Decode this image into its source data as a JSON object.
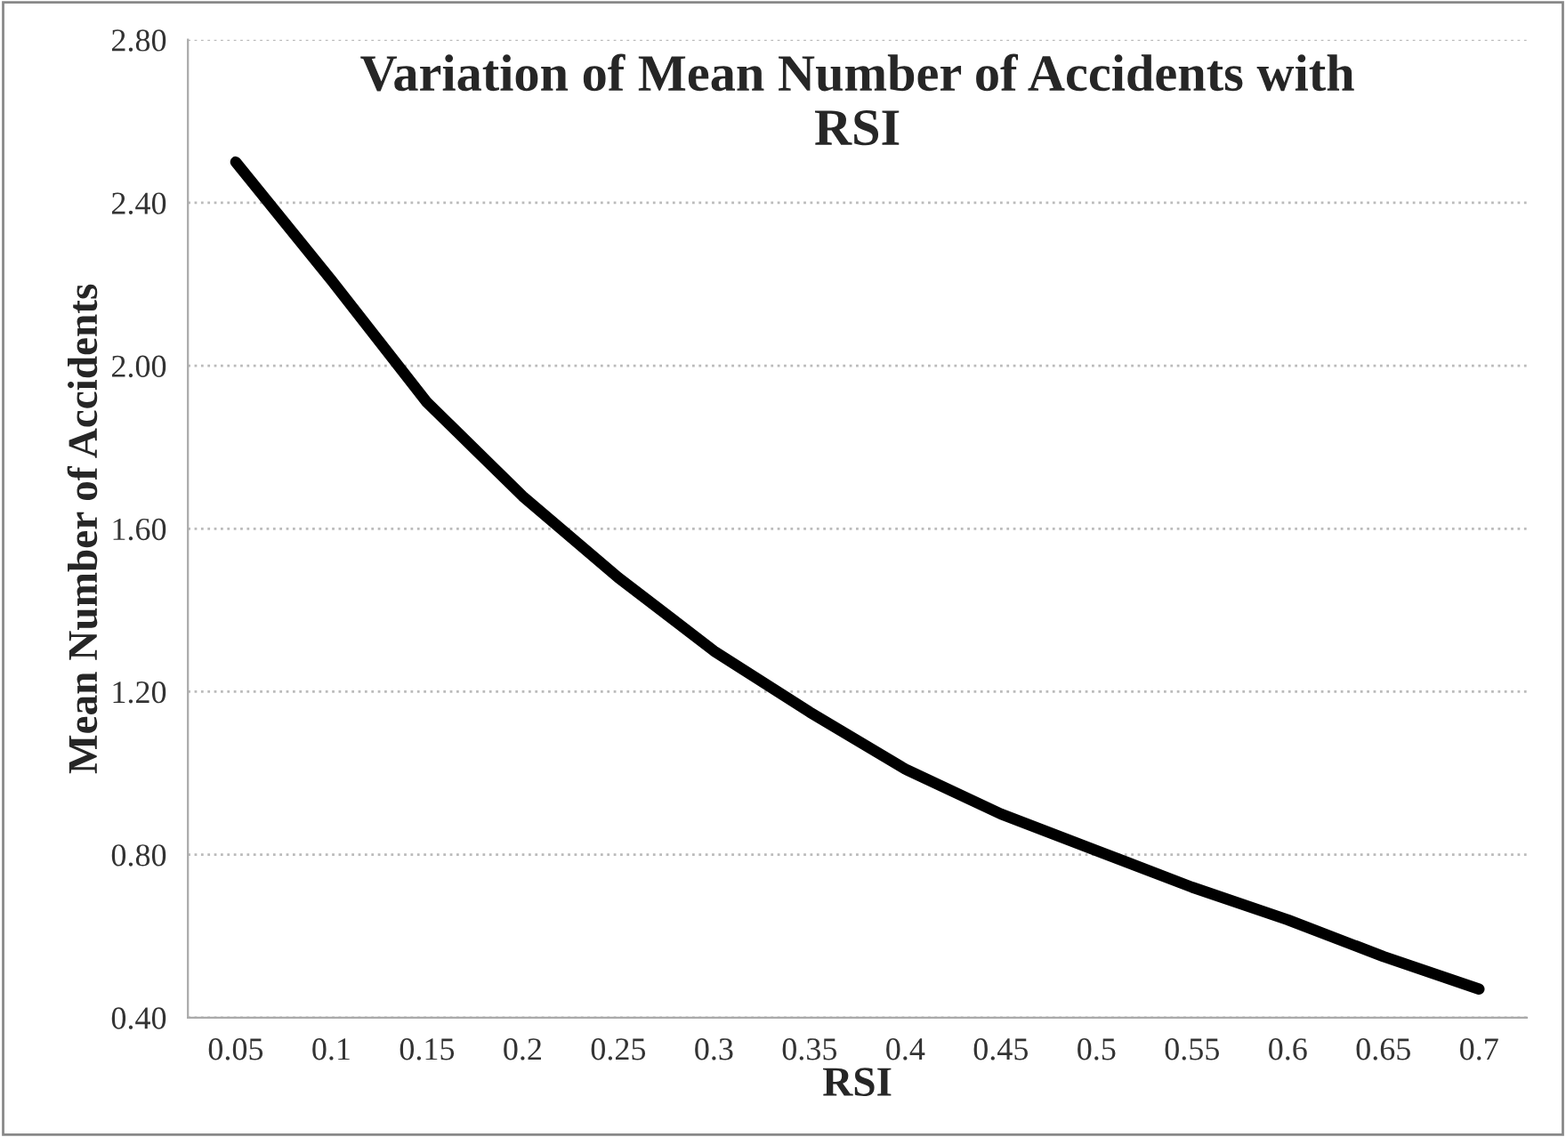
{
  "chart_data": {
    "type": "line",
    "title": "Variation of Mean Number of Accidents with\nRSI",
    "xlabel": "RSI",
    "ylabel": "Mean Number of Accidents",
    "categories": [
      "0.05",
      "0.1",
      "0.15",
      "0.2",
      "0.25",
      "0.3",
      "0.35",
      "0.4",
      "0.45",
      "0.5",
      "0.55",
      "0.6",
      "0.65",
      "0.7"
    ],
    "series": [
      {
        "color": "#000000",
        "values": [
          2.5,
          2.21,
          1.91,
          1.68,
          1.48,
          1.3,
          1.15,
          1.01,
          0.9,
          0.81,
          0.72,
          0.64,
          0.55,
          0.47
        ]
      }
    ],
    "ylim": [
      0.4,
      2.8
    ],
    "yticks": [
      {
        "value": 0.4,
        "label": "0.40"
      },
      {
        "value": 0.8,
        "label": "0.80"
      },
      {
        "value": 1.2,
        "label": "1.20"
      },
      {
        "value": 1.6,
        "label": "1.60"
      },
      {
        "value": 2.0,
        "label": "2.00"
      },
      {
        "value": 2.4,
        "label": "2.40"
      },
      {
        "value": 2.8,
        "label": "2.80"
      }
    ],
    "grid": "y",
    "legend": false,
    "marker": "none",
    "line_style": "solid"
  }
}
